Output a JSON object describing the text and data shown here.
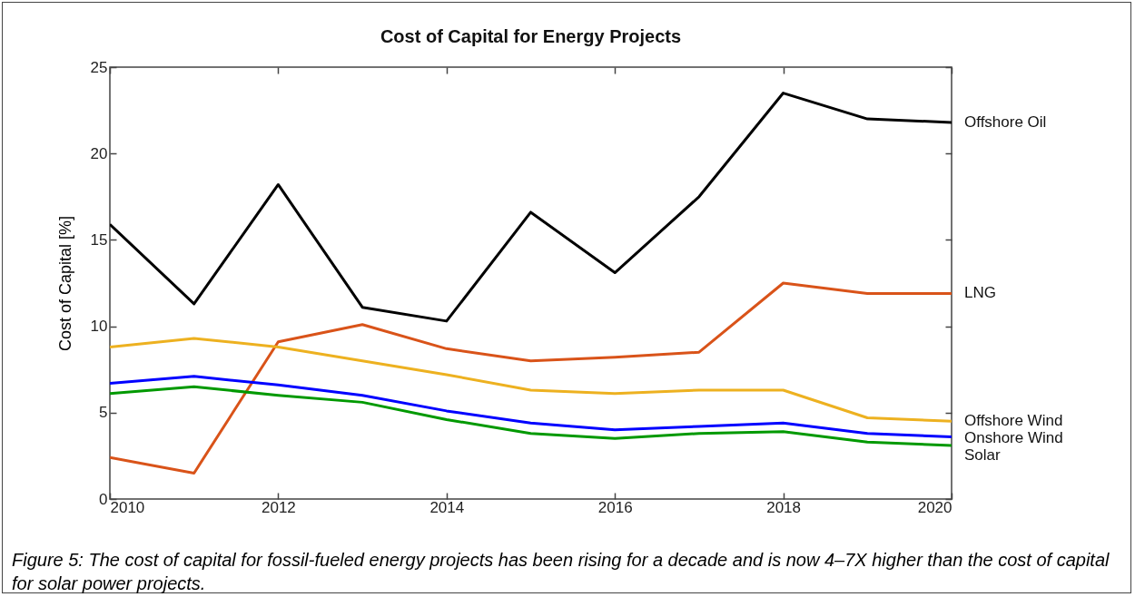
{
  "chart_data": {
    "type": "line",
    "title": "Cost of Capital for Energy Projects",
    "ylabel": "Cost of Capital [%]",
    "x": [
      2010,
      2011,
      2012,
      2013,
      2014,
      2015,
      2016,
      2017,
      2018,
      2019,
      2020
    ],
    "series": [
      {
        "name": "Offshore Oil",
        "color": "#000000",
        "values": [
          15.9,
          11.3,
          18.2,
          11.1,
          10.3,
          16.6,
          13.1,
          17.5,
          23.5,
          22.0,
          21.8
        ]
      },
      {
        "name": "LNG",
        "color": "#d95319",
        "values": [
          2.4,
          1.5,
          9.1,
          10.1,
          8.7,
          8.0,
          8.2,
          8.5,
          12.5,
          11.9,
          11.9
        ]
      },
      {
        "name": "Offshore Wind",
        "color": "#edb120",
        "values": [
          8.8,
          9.3,
          8.8,
          8.0,
          7.2,
          6.3,
          6.1,
          6.3,
          6.3,
          4.7,
          4.5
        ]
      },
      {
        "name": "Onshore Wind",
        "color": "#0000ff",
        "values": [
          6.7,
          7.1,
          6.6,
          6.0,
          5.1,
          4.4,
          4.0,
          4.2,
          4.4,
          3.8,
          3.6
        ]
      },
      {
        "name": "Solar",
        "color": "#009900",
        "values": [
          6.1,
          6.5,
          6.0,
          5.6,
          4.6,
          3.8,
          3.5,
          3.8,
          3.9,
          3.3,
          3.1
        ]
      }
    ],
    "xlim": [
      2010,
      2020
    ],
    "xticks": [
      2010,
      2012,
      2014,
      2016,
      2018,
      2020
    ],
    "ylim": [
      0,
      25
    ],
    "yticks": [
      0,
      5,
      10,
      15,
      20,
      25
    ],
    "grid": false,
    "legend": false,
    "marker": "none",
    "line_style": "solid",
    "annotations": [
      "Figure 5: The cost of capital for fossil-fueled energy projects has been rising for a decade and is now 4–7X higher than the cost of capital for solar power projects."
    ]
  }
}
